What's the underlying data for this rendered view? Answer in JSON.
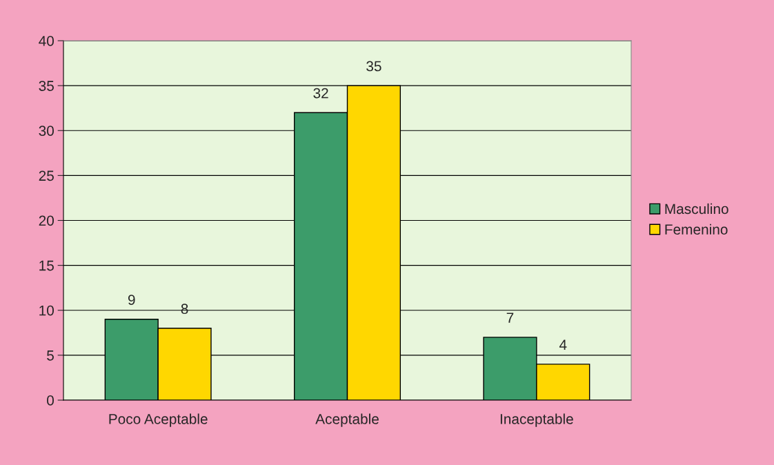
{
  "chart_data": {
    "type": "bar",
    "categories": [
      "Poco Aceptable",
      "Aceptable",
      "Inaceptable"
    ],
    "series": [
      {
        "name": "Masculino",
        "color": "#3c9c6a",
        "values": [
          9,
          32,
          7
        ]
      },
      {
        "name": "Femenino",
        "color": "#ffd700",
        "values": [
          8,
          35,
          4
        ]
      }
    ],
    "ylim": [
      0,
      40
    ],
    "yticks": [
      0,
      5,
      10,
      15,
      20,
      25,
      30,
      35,
      40
    ],
    "grid": "y",
    "legend": "right",
    "data_labels": true
  }
}
